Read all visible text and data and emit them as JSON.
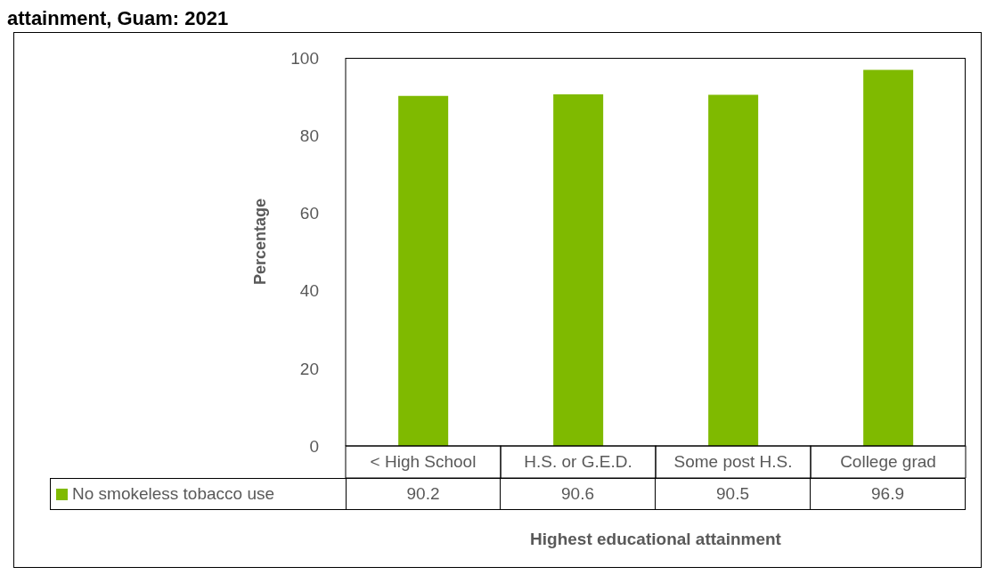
{
  "chart_data": {
    "type": "bar",
    "title": "attainment, Guam: 2021",
    "xlabel": "Highest educational attainment",
    "ylabel": "Percentage",
    "categories": [
      "< High School",
      "H.S. or G.E.D.",
      "Some post H.S.",
      "College grad"
    ],
    "series": [
      {
        "name": "No smokeless tobacco use",
        "color": "#7fba00",
        "values": [
          90.2,
          90.6,
          90.5,
          96.9
        ]
      }
    ],
    "ylim": [
      0,
      100
    ],
    "yticks": [
      0,
      20,
      40,
      60,
      80,
      100
    ],
    "grid": false,
    "legend": "bottom",
    "data_labels": true
  }
}
